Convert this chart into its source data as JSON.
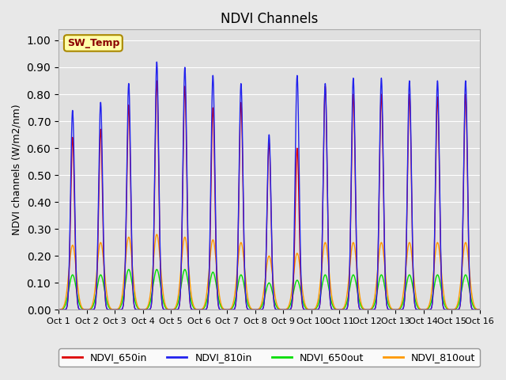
{
  "title": "NDVI Channels",
  "ylabel": "NDVI channels (W/m2/nm)",
  "xlabel": "",
  "ylim": [
    0.0,
    1.04
  ],
  "yticks": [
    0.0,
    0.1,
    0.2,
    0.3,
    0.4,
    0.5,
    0.6,
    0.7,
    0.8,
    0.9,
    1.0
  ],
  "xlim": [
    0,
    15
  ],
  "xtick_labels": [
    "Oct 1",
    "Oct 2",
    "Oct 3",
    "Oct 4",
    "Oct 5",
    "Oct 6",
    "Oct 7",
    "Oct 8",
    "Oct 9",
    "Oct 10",
    "Oct 11",
    "Oct 12",
    "Oct 13",
    "Oct 14",
    "Oct 15",
    "Oct 16"
  ],
  "sw_temp_label": "SW_Temp",
  "legend_entries": [
    "NDVI_650in",
    "NDVI_810in",
    "NDVI_650out",
    "NDVI_810out"
  ],
  "colors": {
    "NDVI_650in": "#dd0000",
    "NDVI_810in": "#2222ee",
    "NDVI_650out": "#00dd00",
    "NDVI_810out": "#ff9900"
  },
  "background_color": "#e8e8e8",
  "plot_bg_color": "#e0e0e0",
  "peak_810in": [
    0.74,
    0.77,
    0.84,
    0.92,
    0.9,
    0.87,
    0.84,
    0.65,
    0.87,
    0.84,
    0.86,
    0.86,
    0.85,
    0.85,
    0.85
  ],
  "peak_650in": [
    0.64,
    0.67,
    0.76,
    0.85,
    0.83,
    0.75,
    0.77,
    0.62,
    0.6,
    0.83,
    0.8,
    0.8,
    0.8,
    0.79,
    0.8
  ],
  "peak_810out": [
    0.24,
    0.25,
    0.27,
    0.28,
    0.27,
    0.26,
    0.25,
    0.2,
    0.21,
    0.25,
    0.25,
    0.25,
    0.25,
    0.25,
    0.25
  ],
  "peak_650out": [
    0.13,
    0.13,
    0.15,
    0.15,
    0.15,
    0.14,
    0.13,
    0.1,
    0.11,
    0.13,
    0.13,
    0.13,
    0.13,
    0.13,
    0.13
  ],
  "sigma_in": 0.07,
  "sigma_out": 0.13,
  "n_points": 3000,
  "pulse_centers": [
    0.5,
    1.5,
    2.5,
    3.5,
    4.5,
    5.5,
    6.5,
    7.5,
    8.5,
    9.5,
    10.5,
    11.5,
    12.5,
    13.5,
    14.5
  ]
}
